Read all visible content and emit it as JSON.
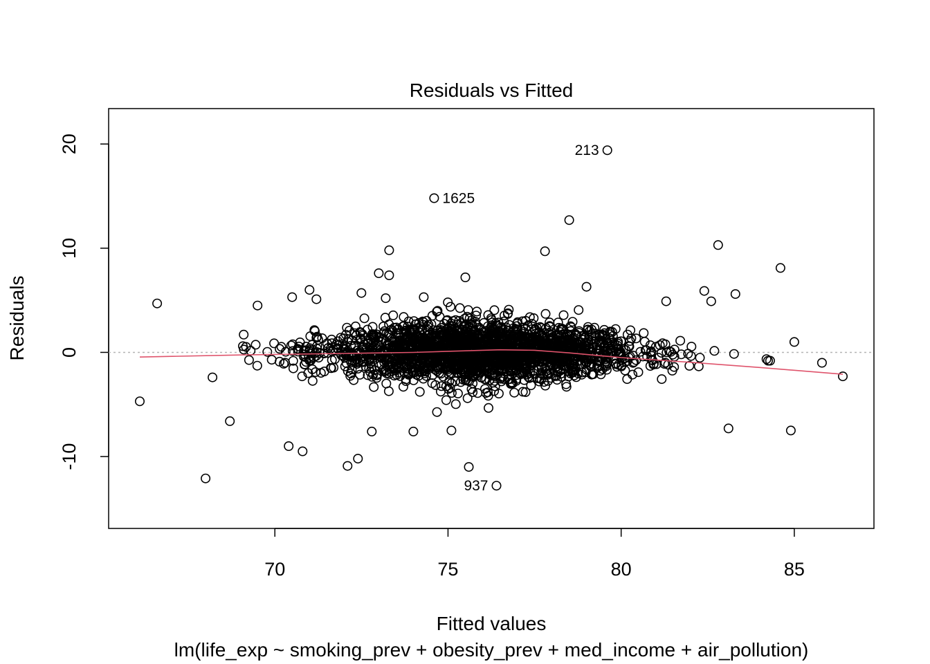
{
  "chart_data": {
    "type": "scatter",
    "title": "Residuals vs Fitted",
    "xlabel": "Fitted values",
    "subtitle": "lm(life_exp ~ smoking_prev + obesity_prev + med_income + air_pollution)",
    "ylabel": "Residuals",
    "xlim": [
      65.2,
      87.3
    ],
    "ylim": [
      -16.9,
      23.4
    ],
    "x_ticks": [
      70,
      75,
      80,
      85
    ],
    "y_ticks": [
      -10,
      0,
      10,
      20
    ],
    "x_tick_labels": [
      "70",
      "75",
      "80",
      "85"
    ],
    "y_tick_labels": [
      "-10",
      "0",
      "10",
      "20"
    ],
    "reference_line": {
      "y": 0,
      "style": "dotted",
      "color": "#b3b3b3"
    },
    "smoother_color": "#DF536B",
    "point_color": "#000000",
    "smoother": {
      "x": [
        66.1,
        69,
        72,
        74,
        75,
        76.5,
        77.5,
        78.5,
        80,
        82,
        84,
        86.4
      ],
      "y": [
        -0.45,
        -0.25,
        -0.1,
        0.0,
        0.1,
        0.25,
        0.2,
        -0.05,
        -0.5,
        -0.95,
        -1.45,
        -2.1
      ]
    },
    "labeled_points": [
      {
        "x": 79.6,
        "y": 19.4,
        "label": "213"
      },
      {
        "x": 74.6,
        "y": 14.8,
        "label": "1625"
      },
      {
        "x": 76.4,
        "y": -12.8,
        "label": "937"
      }
    ],
    "outliers": {
      "x": [
        66.1,
        66.6,
        68.0,
        68.2,
        68.7,
        69.5,
        70.4,
        70.8,
        72.1,
        72.4,
        72.8,
        73.0,
        73.3,
        73.3,
        75.6,
        77.8,
        78.5,
        82.8,
        83.3,
        84.6,
        84.9,
        83.1,
        75.5,
        73.2,
        71.0,
        70.5,
        71.2,
        69.1,
        72.5,
        74.3,
        79.0,
        81.3,
        82.4,
        82.6,
        85.0,
        86.4,
        85.8,
        84.3,
        74.0,
        75.1
      ],
      "y": [
        -4.7,
        4.7,
        -12.1,
        -2.4,
        -6.6,
        4.5,
        -9.0,
        -9.5,
        -10.9,
        -10.2,
        -7.6,
        7.6,
        9.8,
        7.4,
        -11.0,
        9.7,
        12.7,
        10.3,
        5.6,
        8.1,
        -7.5,
        -7.3,
        7.2,
        5.2,
        6.0,
        5.3,
        5.1,
        1.7,
        5.7,
        5.3,
        6.3,
        4.9,
        5.9,
        4.9,
        1.0,
        -2.3,
        -1.0,
        -0.8,
        -7.6,
        -7.5
      ]
    },
    "bulk_points": {
      "count": 2300,
      "x_center": 76.0,
      "x_spread": 2.3,
      "y_spread": 1.6
    }
  }
}
